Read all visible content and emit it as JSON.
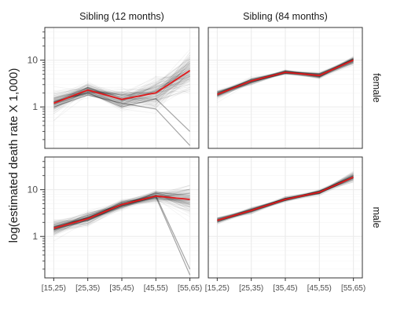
{
  "chart_data": {
    "type": "line",
    "ylabel": "log(estimated death rate X 1,000)",
    "y_scale": "log10",
    "y_ticks": [
      1,
      10
    ],
    "y_tick_labels": [
      "1",
      "10"
    ],
    "ylim": [
      0.13,
      50
    ],
    "categories": [
      "[15,25)",
      "[25,35)",
      "[35,45)",
      "[45,55)",
      "[55,65)"
    ],
    "column_facets": [
      "Sibling (12 months)",
      "Sibling (84 months)"
    ],
    "row_facets": [
      "female",
      "male"
    ],
    "colors": {
      "estimate": "#e31a1c",
      "draws": "#000000",
      "panel_border": "#333333",
      "grid_major": "#ebebeb",
      "grid_minor": "#f5f5f5"
    },
    "panels": [
      {
        "column": "Sibling (12 months)",
        "row": "female",
        "estimate": [
          1.2,
          2.3,
          1.45,
          2.0,
          6.0
        ],
        "draw_spread": [
          0.25,
          0.15,
          0.22,
          0.35,
          0.45
        ],
        "outlier_draws": [
          [
            1.0,
            1.8,
            1.2,
            0.9,
            0.15
          ],
          [
            1.3,
            2.0,
            1.0,
            1.5,
            0.3
          ]
        ]
      },
      {
        "column": "Sibling (84 months)",
        "row": "female",
        "estimate": [
          1.85,
          3.6,
          5.5,
          4.7,
          10.0
        ],
        "draw_spread": [
          0.1,
          0.07,
          0.05,
          0.07,
          0.09
        ],
        "outlier_draws": []
      },
      {
        "column": "Sibling (12 months)",
        "row": "male",
        "estimate": [
          1.5,
          2.4,
          4.8,
          7.3,
          6.2
        ],
        "draw_spread": [
          0.2,
          0.15,
          0.1,
          0.12,
          0.3
        ],
        "outlier_draws": [
          [
            1.4,
            2.2,
            4.5,
            7.0,
            0.15
          ],
          [
            1.6,
            2.5,
            4.9,
            7.5,
            0.2
          ]
        ]
      },
      {
        "column": "Sibling (84 months)",
        "row": "male",
        "estimate": [
          2.2,
          3.6,
          6.2,
          8.8,
          18.5
        ],
        "draw_spread": [
          0.07,
          0.06,
          0.05,
          0.06,
          0.1
        ],
        "outlier_draws": []
      }
    ]
  }
}
